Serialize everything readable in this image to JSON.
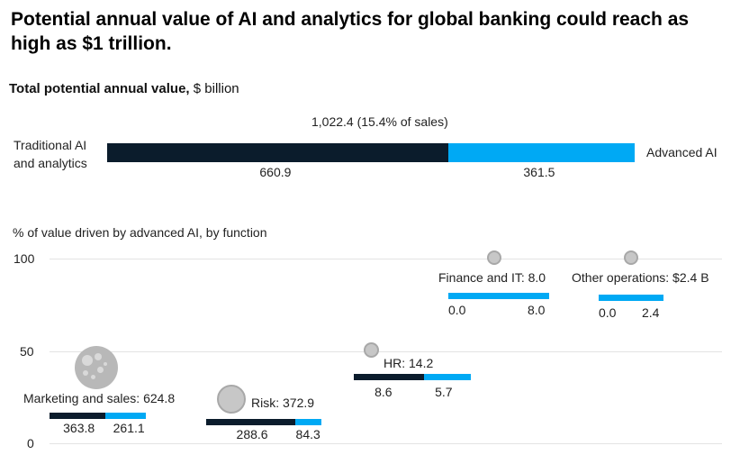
{
  "title": "Potential annual value of AI and analytics for global banking could reach as high as $1 trillion.",
  "subtitle": {
    "bold": "Total potential annual value,",
    "unit": "$ billion"
  },
  "total": {
    "label": "1,022.4 (15.4% of sales)",
    "left_label": [
      "Traditional AI",
      "and analytics"
    ],
    "right_label": "Advanced AI",
    "traditional_value": 660.9,
    "advanced_value": 361.5,
    "traditional_text": "660.9",
    "advanced_text": "361.5"
  },
  "colors": {
    "traditional": "#0b1c2c",
    "advanced": "#00a9f4",
    "bubble": "#c7c7c7"
  },
  "chart_data": {
    "type": "scatter",
    "ylabel": "% of value driven by advanced AI, by function",
    "ylim": [
      0,
      100
    ],
    "y_ticks": [
      "100",
      "50",
      "0"
    ],
    "series": [
      {
        "label": "Marketing and sales: ",
        "total": "624.8",
        "traditional": 363.8,
        "advanced": 261.1,
        "traditional_text": "363.8",
        "advanced_text": "261.1",
        "y_percent": 41.8
      },
      {
        "label": "Risk: ",
        "total": "372.9",
        "traditional": 288.6,
        "advanced": 84.3,
        "traditional_text": "288.6",
        "advanced_text": "84.3",
        "y_percent": 22.6
      },
      {
        "label": "HR: ",
        "total": "14.2",
        "traditional": 8.6,
        "advanced": 5.7,
        "traditional_text": "8.6",
        "advanced_text": "5.7",
        "y_percent": 39.9
      },
      {
        "label": "Finance and IT: ",
        "total": "8.0",
        "traditional": 0.0,
        "advanced": 8.0,
        "traditional_text": "0.0",
        "advanced_text": "8.0",
        "y_percent": 100
      },
      {
        "label": "Other operations: ",
        "total": "$2.4 B",
        "traditional": 0.0,
        "advanced": 2.4,
        "traditional_text": "0.0",
        "advanced_text": "2.4",
        "y_percent": 100
      }
    ]
  }
}
